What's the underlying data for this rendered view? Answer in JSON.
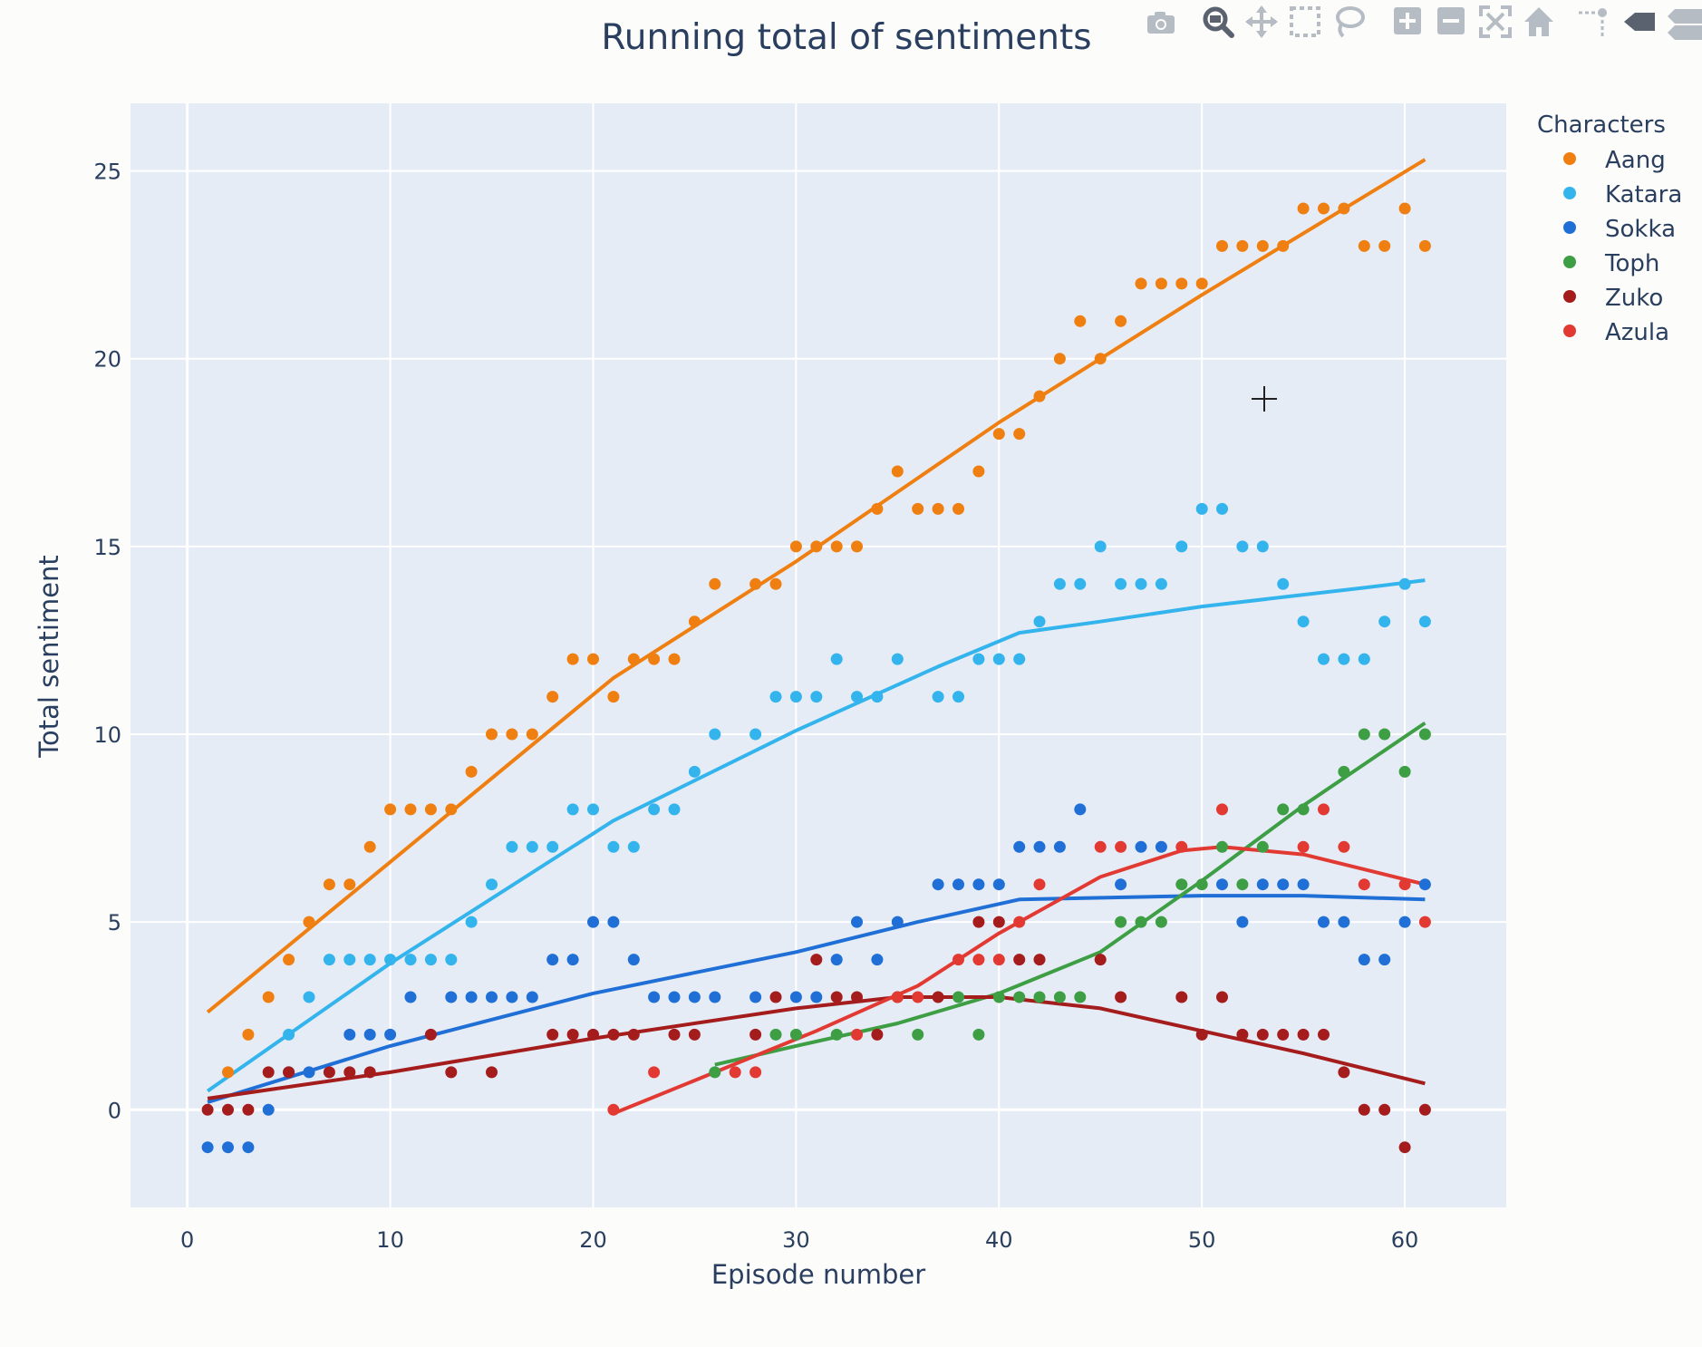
{
  "chart_data": {
    "type": "scatter",
    "title": "Running total of sentiments",
    "xlabel": "Episode number",
    "ylabel": "Total sentiment",
    "xlim": [
      -2.8,
      65
    ],
    "ylim": [
      -2.6,
      26.8
    ],
    "xticks": [
      0,
      10,
      20,
      30,
      40,
      50,
      60
    ],
    "yticks": [
      0,
      5,
      10,
      15,
      20,
      25
    ],
    "grid": true,
    "legend_title": "Characters",
    "legend_position": "right",
    "series": [
      {
        "name": "Aang",
        "color": "#ef7f10",
        "points": [
          [
            2,
            1
          ],
          [
            3,
            2
          ],
          [
            4,
            3
          ],
          [
            5,
            4
          ],
          [
            6,
            5
          ],
          [
            7,
            6
          ],
          [
            8,
            6
          ],
          [
            9,
            7
          ],
          [
            10,
            8
          ],
          [
            11,
            8
          ],
          [
            12,
            8
          ],
          [
            13,
            8
          ],
          [
            14,
            9
          ],
          [
            15,
            10
          ],
          [
            16,
            10
          ],
          [
            17,
            10
          ],
          [
            18,
            11
          ],
          [
            19,
            12
          ],
          [
            20,
            12
          ],
          [
            21,
            11
          ],
          [
            22,
            12
          ],
          [
            23,
            12
          ],
          [
            24,
            12
          ],
          [
            25,
            13
          ],
          [
            26,
            14
          ],
          [
            28,
            14
          ],
          [
            29,
            14
          ],
          [
            30,
            15
          ],
          [
            31,
            15
          ],
          [
            32,
            15
          ],
          [
            33,
            15
          ],
          [
            34,
            16
          ],
          [
            35,
            17
          ],
          [
            36,
            16
          ],
          [
            37,
            16
          ],
          [
            38,
            16
          ],
          [
            39,
            17
          ],
          [
            40,
            18
          ],
          [
            41,
            18
          ],
          [
            42,
            19
          ],
          [
            43,
            20
          ],
          [
            44,
            21
          ],
          [
            45,
            20
          ],
          [
            46,
            21
          ],
          [
            47,
            22
          ],
          [
            48,
            22
          ],
          [
            49,
            22
          ],
          [
            50,
            22
          ],
          [
            51,
            23
          ],
          [
            52,
            23
          ],
          [
            53,
            23
          ],
          [
            54,
            23
          ],
          [
            55,
            24
          ],
          [
            56,
            24
          ],
          [
            57,
            24
          ],
          [
            58,
            23
          ],
          [
            59,
            23
          ],
          [
            60,
            24
          ],
          [
            61,
            23
          ]
        ],
        "trend": [
          [
            1,
            2.6
          ],
          [
            10,
            6.6
          ],
          [
            21,
            11.5
          ],
          [
            30,
            14.6
          ],
          [
            40,
            18.3
          ],
          [
            50,
            21.7
          ],
          [
            61,
            25.3
          ]
        ]
      },
      {
        "name": "Katara",
        "color": "#34b4ec",
        "points": [
          [
            5,
            2
          ],
          [
            6,
            3
          ],
          [
            7,
            4
          ],
          [
            8,
            4
          ],
          [
            9,
            4
          ],
          [
            10,
            4
          ],
          [
            11,
            4
          ],
          [
            12,
            4
          ],
          [
            13,
            4
          ],
          [
            14,
            5
          ],
          [
            15,
            6
          ],
          [
            16,
            7
          ],
          [
            17,
            7
          ],
          [
            18,
            7
          ],
          [
            19,
            8
          ],
          [
            20,
            8
          ],
          [
            21,
            7
          ],
          [
            22,
            7
          ],
          [
            23,
            8
          ],
          [
            24,
            8
          ],
          [
            25,
            9
          ],
          [
            26,
            10
          ],
          [
            28,
            10
          ],
          [
            29,
            11
          ],
          [
            30,
            11
          ],
          [
            31,
            11
          ],
          [
            32,
            12
          ],
          [
            33,
            11
          ],
          [
            34,
            11
          ],
          [
            35,
            12
          ],
          [
            37,
            11
          ],
          [
            38,
            11
          ],
          [
            39,
            12
          ],
          [
            40,
            12
          ],
          [
            41,
            12
          ],
          [
            42,
            13
          ],
          [
            43,
            14
          ],
          [
            44,
            14
          ],
          [
            45,
            15
          ],
          [
            46,
            14
          ],
          [
            47,
            14
          ],
          [
            48,
            14
          ],
          [
            49,
            15
          ],
          [
            50,
            16
          ],
          [
            51,
            16
          ],
          [
            52,
            15
          ],
          [
            53,
            15
          ],
          [
            54,
            14
          ],
          [
            55,
            13
          ],
          [
            56,
            12
          ],
          [
            57,
            12
          ],
          [
            58,
            12
          ],
          [
            59,
            13
          ],
          [
            60,
            14
          ],
          [
            61,
            13
          ]
        ],
        "trend": [
          [
            1,
            0.5
          ],
          [
            10,
            3.9
          ],
          [
            21,
            7.7
          ],
          [
            30,
            10.1
          ],
          [
            37,
            11.8
          ],
          [
            41,
            12.7
          ],
          [
            45,
            13.0
          ],
          [
            50,
            13.4
          ],
          [
            58,
            13.9
          ],
          [
            61,
            14.1
          ]
        ]
      },
      {
        "name": "Sokka",
        "color": "#1f6fd6",
        "points": [
          [
            1,
            -1
          ],
          [
            2,
            -1
          ],
          [
            3,
            -1
          ],
          [
            4,
            0
          ],
          [
            5,
            1
          ],
          [
            6,
            1
          ],
          [
            8,
            2
          ],
          [
            9,
            2
          ],
          [
            10,
            2
          ],
          [
            11,
            3
          ],
          [
            13,
            3
          ],
          [
            14,
            3
          ],
          [
            15,
            3
          ],
          [
            16,
            3
          ],
          [
            17,
            3
          ],
          [
            18,
            4
          ],
          [
            19,
            4
          ],
          [
            20,
            5
          ],
          [
            21,
            5
          ],
          [
            22,
            4
          ],
          [
            23,
            3
          ],
          [
            24,
            3
          ],
          [
            25,
            3
          ],
          [
            26,
            3
          ],
          [
            28,
            3
          ],
          [
            30,
            3
          ],
          [
            31,
            3
          ],
          [
            32,
            4
          ],
          [
            33,
            5
          ],
          [
            34,
            4
          ],
          [
            35,
            5
          ],
          [
            37,
            6
          ],
          [
            38,
            6
          ],
          [
            39,
            6
          ],
          [
            40,
            6
          ],
          [
            41,
            7
          ],
          [
            42,
            7
          ],
          [
            43,
            7
          ],
          [
            44,
            8
          ],
          [
            46,
            6
          ],
          [
            47,
            7
          ],
          [
            48,
            7
          ],
          [
            51,
            6
          ],
          [
            52,
            5
          ],
          [
            53,
            6
          ],
          [
            54,
            6
          ],
          [
            55,
            6
          ],
          [
            56,
            5
          ],
          [
            57,
            5
          ],
          [
            58,
            4
          ],
          [
            59,
            4
          ],
          [
            60,
            5
          ],
          [
            61,
            6
          ]
        ],
        "trend": [
          [
            1,
            0.2
          ],
          [
            10,
            1.7
          ],
          [
            20,
            3.1
          ],
          [
            30,
            4.2
          ],
          [
            36,
            5.0
          ],
          [
            41,
            5.6
          ],
          [
            50,
            5.7
          ],
          [
            55,
            5.7
          ],
          [
            61,
            5.6
          ]
        ]
      },
      {
        "name": "Toph",
        "color": "#3d9e44",
        "points": [
          [
            26,
            1
          ],
          [
            29,
            2
          ],
          [
            30,
            2
          ],
          [
            32,
            2
          ],
          [
            36,
            2
          ],
          [
            38,
            3
          ],
          [
            39,
            2
          ],
          [
            40,
            3
          ],
          [
            41,
            3
          ],
          [
            42,
            3
          ],
          [
            43,
            3
          ],
          [
            44,
            3
          ],
          [
            46,
            5
          ],
          [
            47,
            5
          ],
          [
            48,
            5
          ],
          [
            49,
            6
          ],
          [
            50,
            6
          ],
          [
            51,
            7
          ],
          [
            52,
            6
          ],
          [
            53,
            7
          ],
          [
            54,
            8
          ],
          [
            55,
            8
          ],
          [
            57,
            9
          ],
          [
            58,
            10
          ],
          [
            59,
            10
          ],
          [
            60,
            9
          ],
          [
            61,
            10
          ]
        ],
        "trend": [
          [
            26,
            1.2
          ],
          [
            30,
            1.7
          ],
          [
            35,
            2.3
          ],
          [
            40,
            3.1
          ],
          [
            45,
            4.2
          ],
          [
            50,
            6.1
          ],
          [
            55,
            8.1
          ],
          [
            61,
            10.3
          ]
        ]
      },
      {
        "name": "Zuko",
        "color": "#a51c1c",
        "points": [
          [
            1,
            0
          ],
          [
            2,
            0
          ],
          [
            3,
            0
          ],
          [
            4,
            1
          ],
          [
            5,
            1
          ],
          [
            7,
            1
          ],
          [
            8,
            1
          ],
          [
            9,
            1
          ],
          [
            12,
            2
          ],
          [
            13,
            1
          ],
          [
            15,
            1
          ],
          [
            18,
            2
          ],
          [
            19,
            2
          ],
          [
            20,
            2
          ],
          [
            21,
            2
          ],
          [
            22,
            2
          ],
          [
            24,
            2
          ],
          [
            25,
            2
          ],
          [
            28,
            2
          ],
          [
            29,
            3
          ],
          [
            31,
            4
          ],
          [
            32,
            3
          ],
          [
            33,
            3
          ],
          [
            34,
            2
          ],
          [
            35,
            3
          ],
          [
            37,
            3
          ],
          [
            39,
            5
          ],
          [
            40,
            5
          ],
          [
            41,
            4
          ],
          [
            42,
            4
          ],
          [
            45,
            4
          ],
          [
            46,
            3
          ],
          [
            49,
            3
          ],
          [
            50,
            2
          ],
          [
            51,
            3
          ],
          [
            52,
            2
          ],
          [
            53,
            2
          ],
          [
            54,
            2
          ],
          [
            55,
            2
          ],
          [
            56,
            2
          ],
          [
            57,
            1
          ],
          [
            58,
            0
          ],
          [
            59,
            0
          ],
          [
            60,
            -1
          ],
          [
            61,
            0
          ]
        ],
        "trend": [
          [
            1,
            0.3
          ],
          [
            10,
            1.0
          ],
          [
            20,
            1.9
          ],
          [
            30,
            2.7
          ],
          [
            35,
            3.0
          ],
          [
            40,
            3.0
          ],
          [
            45,
            2.7
          ],
          [
            50,
            2.1
          ],
          [
            55,
            1.5
          ],
          [
            61,
            0.7
          ]
        ]
      },
      {
        "name": "Azula",
        "color": "#e23a33",
        "points": [
          [
            21,
            0
          ],
          [
            23,
            1
          ],
          [
            27,
            1
          ],
          [
            28,
            1
          ],
          [
            33,
            2
          ],
          [
            35,
            3
          ],
          [
            36,
            3
          ],
          [
            38,
            4
          ],
          [
            39,
            4
          ],
          [
            40,
            4
          ],
          [
            41,
            5
          ],
          [
            42,
            6
          ],
          [
            45,
            7
          ],
          [
            46,
            7
          ],
          [
            49,
            7
          ],
          [
            51,
            8
          ],
          [
            56,
            8
          ],
          [
            55,
            7
          ],
          [
            57,
            7
          ],
          [
            58,
            6
          ],
          [
            60,
            6
          ],
          [
            61,
            5
          ]
        ],
        "trend": [
          [
            21,
            -0.1
          ],
          [
            26,
            1.0
          ],
          [
            31,
            2.1
          ],
          [
            36,
            3.3
          ],
          [
            40,
            4.7
          ],
          [
            45,
            6.2
          ],
          [
            49,
            6.9
          ],
          [
            51,
            7.0
          ],
          [
            55,
            6.8
          ],
          [
            58,
            6.4
          ],
          [
            61,
            6.0
          ]
        ]
      }
    ]
  },
  "modebar": {
    "icons": [
      "camera-icon",
      "zoom-icon",
      "pan-icon",
      "box-select-icon",
      "lasso-icon",
      "zoom-in-icon",
      "zoom-out-icon",
      "autoscale-icon",
      "reset-axes-icon",
      "spike-lines-icon",
      "hover-closest-icon",
      "hover-compare-icon"
    ]
  }
}
